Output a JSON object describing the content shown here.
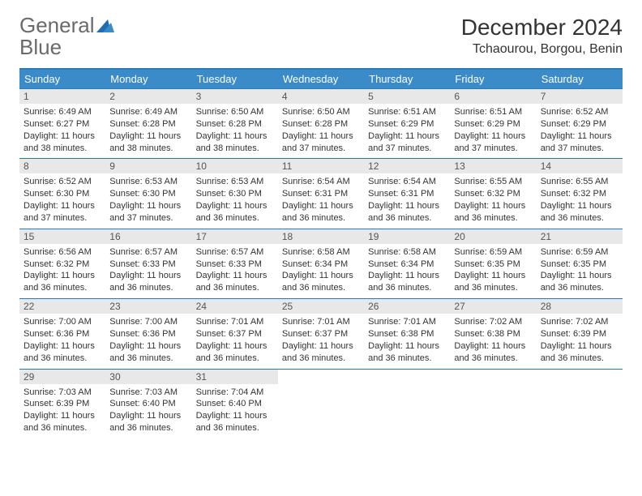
{
  "logo": {
    "text1": "General",
    "text2": "Blue"
  },
  "title": "December 2024",
  "location": "Tchaourou, Borgou, Benin",
  "colors": {
    "header_bg": "#3b8bc9",
    "header_text": "#ffffff",
    "border": "#2a7ab8",
    "daynum_bg": "#e8e8e8",
    "text": "#333333",
    "logo_gray": "#6a6a6a",
    "logo_blue": "#2a7ab8"
  },
  "weekdays": [
    "Sunday",
    "Monday",
    "Tuesday",
    "Wednesday",
    "Thursday",
    "Friday",
    "Saturday"
  ],
  "days": [
    {
      "n": 1,
      "sr": "6:49 AM",
      "ss": "6:27 PM",
      "dl": "11 hours and 38 minutes."
    },
    {
      "n": 2,
      "sr": "6:49 AM",
      "ss": "6:28 PM",
      "dl": "11 hours and 38 minutes."
    },
    {
      "n": 3,
      "sr": "6:50 AM",
      "ss": "6:28 PM",
      "dl": "11 hours and 38 minutes."
    },
    {
      "n": 4,
      "sr": "6:50 AM",
      "ss": "6:28 PM",
      "dl": "11 hours and 37 minutes."
    },
    {
      "n": 5,
      "sr": "6:51 AM",
      "ss": "6:29 PM",
      "dl": "11 hours and 37 minutes."
    },
    {
      "n": 6,
      "sr": "6:51 AM",
      "ss": "6:29 PM",
      "dl": "11 hours and 37 minutes."
    },
    {
      "n": 7,
      "sr": "6:52 AM",
      "ss": "6:29 PM",
      "dl": "11 hours and 37 minutes."
    },
    {
      "n": 8,
      "sr": "6:52 AM",
      "ss": "6:30 PM",
      "dl": "11 hours and 37 minutes."
    },
    {
      "n": 9,
      "sr": "6:53 AM",
      "ss": "6:30 PM",
      "dl": "11 hours and 37 minutes."
    },
    {
      "n": 10,
      "sr": "6:53 AM",
      "ss": "6:30 PM",
      "dl": "11 hours and 36 minutes."
    },
    {
      "n": 11,
      "sr": "6:54 AM",
      "ss": "6:31 PM",
      "dl": "11 hours and 36 minutes."
    },
    {
      "n": 12,
      "sr": "6:54 AM",
      "ss": "6:31 PM",
      "dl": "11 hours and 36 minutes."
    },
    {
      "n": 13,
      "sr": "6:55 AM",
      "ss": "6:32 PM",
      "dl": "11 hours and 36 minutes."
    },
    {
      "n": 14,
      "sr": "6:55 AM",
      "ss": "6:32 PM",
      "dl": "11 hours and 36 minutes."
    },
    {
      "n": 15,
      "sr": "6:56 AM",
      "ss": "6:32 PM",
      "dl": "11 hours and 36 minutes."
    },
    {
      "n": 16,
      "sr": "6:57 AM",
      "ss": "6:33 PM",
      "dl": "11 hours and 36 minutes."
    },
    {
      "n": 17,
      "sr": "6:57 AM",
      "ss": "6:33 PM",
      "dl": "11 hours and 36 minutes."
    },
    {
      "n": 18,
      "sr": "6:58 AM",
      "ss": "6:34 PM",
      "dl": "11 hours and 36 minutes."
    },
    {
      "n": 19,
      "sr": "6:58 AM",
      "ss": "6:34 PM",
      "dl": "11 hours and 36 minutes."
    },
    {
      "n": 20,
      "sr": "6:59 AM",
      "ss": "6:35 PM",
      "dl": "11 hours and 36 minutes."
    },
    {
      "n": 21,
      "sr": "6:59 AM",
      "ss": "6:35 PM",
      "dl": "11 hours and 36 minutes."
    },
    {
      "n": 22,
      "sr": "7:00 AM",
      "ss": "6:36 PM",
      "dl": "11 hours and 36 minutes."
    },
    {
      "n": 23,
      "sr": "7:00 AM",
      "ss": "6:36 PM",
      "dl": "11 hours and 36 minutes."
    },
    {
      "n": 24,
      "sr": "7:01 AM",
      "ss": "6:37 PM",
      "dl": "11 hours and 36 minutes."
    },
    {
      "n": 25,
      "sr": "7:01 AM",
      "ss": "6:37 PM",
      "dl": "11 hours and 36 minutes."
    },
    {
      "n": 26,
      "sr": "7:01 AM",
      "ss": "6:38 PM",
      "dl": "11 hours and 36 minutes."
    },
    {
      "n": 27,
      "sr": "7:02 AM",
      "ss": "6:38 PM",
      "dl": "11 hours and 36 minutes."
    },
    {
      "n": 28,
      "sr": "7:02 AM",
      "ss": "6:39 PM",
      "dl": "11 hours and 36 minutes."
    },
    {
      "n": 29,
      "sr": "7:03 AM",
      "ss": "6:39 PM",
      "dl": "11 hours and 36 minutes."
    },
    {
      "n": 30,
      "sr": "7:03 AM",
      "ss": "6:40 PM",
      "dl": "11 hours and 36 minutes."
    },
    {
      "n": 31,
      "sr": "7:04 AM",
      "ss": "6:40 PM",
      "dl": "11 hours and 36 minutes."
    }
  ],
  "labels": {
    "sunrise": "Sunrise:",
    "sunset": "Sunset:",
    "daylight": "Daylight:"
  }
}
